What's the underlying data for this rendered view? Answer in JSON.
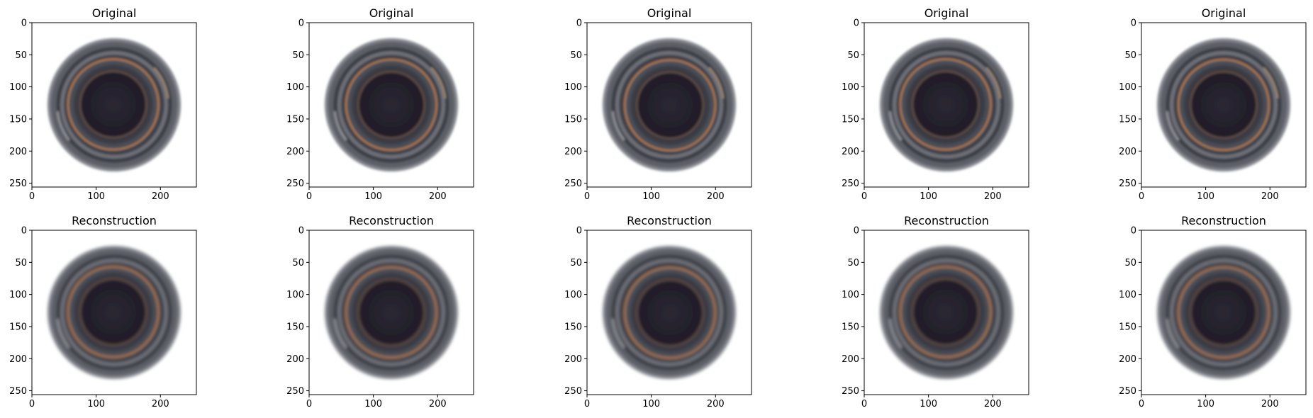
{
  "figure": {
    "row_titles": [
      "Original",
      "Reconstruction"
    ],
    "columns": 5,
    "axis": {
      "xticks": [
        "0",
        "100",
        "200"
      ],
      "yticks": [
        "0",
        "50",
        "100",
        "150",
        "200",
        "250"
      ]
    }
  },
  "panels": [
    {
      "title": "Original",
      "kind": "original",
      "variant": 0
    },
    {
      "title": "Original",
      "kind": "original",
      "variant": 1
    },
    {
      "title": "Original",
      "kind": "original",
      "variant": 2
    },
    {
      "title": "Original",
      "kind": "original",
      "variant": 3
    },
    {
      "title": "Original",
      "kind": "original",
      "variant": 4
    },
    {
      "title": "Reconstruction",
      "kind": "reconstruction",
      "variant": 0
    },
    {
      "title": "Reconstruction",
      "kind": "reconstruction",
      "variant": 1
    },
    {
      "title": "Reconstruction",
      "kind": "reconstruction",
      "variant": 2
    },
    {
      "title": "Reconstruction",
      "kind": "reconstruction",
      "variant": 3
    },
    {
      "title": "Reconstruction",
      "kind": "reconstruction",
      "variant": 4
    }
  ],
  "colors": {
    "background": "#ffffff",
    "dark_core": "#25222e",
    "ring_gray": "#4a4d56",
    "rim_light": "#8b8f96",
    "copper": "#b07a52"
  }
}
